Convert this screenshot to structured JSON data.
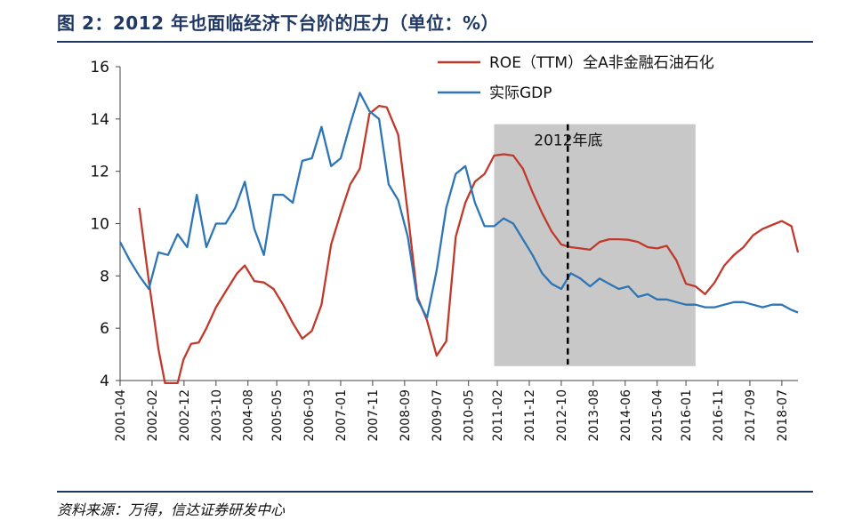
{
  "figure": {
    "title": "图 2：2012 年也面临经济下台阶的压力（单位：%）",
    "source": "资料来源：万得，信达证券研发中心"
  },
  "colors": {
    "roe": "#c0392b",
    "gdp": "#2e75b6",
    "shade": "#c8c8c8",
    "rule": "#1f3864"
  },
  "chart_data": {
    "type": "line",
    "title": "",
    "xlabel": "",
    "ylabel": "",
    "ylim": [
      4,
      16
    ],
    "yticks": [
      4,
      6,
      8,
      10,
      12,
      14,
      16
    ],
    "grid": false,
    "legend_position": "top-right",
    "xticks": [
      "2001-04",
      "2002-02",
      "2002-12",
      "2003-10",
      "2004-08",
      "2005-05",
      "2006-03",
      "2007-01",
      "2007-11",
      "2008-09",
      "2009-07",
      "2010-05",
      "2011-02",
      "2011-12",
      "2012-10",
      "2013-08",
      "2014-06",
      "2015-04",
      "2016-01",
      "2016-11",
      "2017-09",
      "2018-07"
    ],
    "x_range": [
      2001.25,
      2018.92
    ],
    "shaded_region": {
      "x_start": 2011.0,
      "x_end": 2016.25
    },
    "annotation": {
      "text": "2012年底",
      "x": 2012.92
    },
    "series": [
      {
        "name": "ROE（TTM）全A非金融石油石化",
        "color": "#c0392b",
        "points": [
          [
            2001.75,
            10.6
          ],
          [
            2002.0,
            7.8
          ],
          [
            2002.25,
            5.2
          ],
          [
            2002.42,
            3.9
          ],
          [
            2002.75,
            3.9
          ],
          [
            2002.9,
            4.8
          ],
          [
            2003.1,
            5.4
          ],
          [
            2003.3,
            5.45
          ],
          [
            2003.5,
            6.0
          ],
          [
            2003.75,
            6.8
          ],
          [
            2004.0,
            7.4
          ],
          [
            2004.3,
            8.1
          ],
          [
            2004.5,
            8.4
          ],
          [
            2004.75,
            7.8
          ],
          [
            2005.0,
            7.75
          ],
          [
            2005.25,
            7.5
          ],
          [
            2005.5,
            6.9
          ],
          [
            2005.75,
            6.2
          ],
          [
            2006.0,
            5.6
          ],
          [
            2006.25,
            5.9
          ],
          [
            2006.5,
            6.9
          ],
          [
            2006.75,
            9.2
          ],
          [
            2007.0,
            10.4
          ],
          [
            2007.25,
            11.5
          ],
          [
            2007.5,
            12.1
          ],
          [
            2007.75,
            14.2
          ],
          [
            2008.0,
            14.5
          ],
          [
            2008.2,
            14.45
          ],
          [
            2008.5,
            13.4
          ],
          [
            2008.75,
            10.4
          ],
          [
            2009.0,
            7.2
          ],
          [
            2009.25,
            6.3
          ],
          [
            2009.5,
            4.95
          ],
          [
            2009.75,
            5.5
          ],
          [
            2010.0,
            9.5
          ],
          [
            2010.25,
            10.8
          ],
          [
            2010.5,
            11.6
          ],
          [
            2010.75,
            11.9
          ],
          [
            2011.0,
            12.6
          ],
          [
            2011.25,
            12.65
          ],
          [
            2011.5,
            12.6
          ],
          [
            2011.75,
            12.1
          ],
          [
            2012.0,
            11.2
          ],
          [
            2012.25,
            10.4
          ],
          [
            2012.5,
            9.7
          ],
          [
            2012.75,
            9.2
          ],
          [
            2013.0,
            9.1
          ],
          [
            2013.25,
            9.05
          ],
          [
            2013.5,
            9.0
          ],
          [
            2013.75,
            9.3
          ],
          [
            2014.0,
            9.4
          ],
          [
            2014.25,
            9.4
          ],
          [
            2014.5,
            9.38
          ],
          [
            2014.75,
            9.3
          ],
          [
            2015.0,
            9.1
          ],
          [
            2015.25,
            9.05
          ],
          [
            2015.5,
            9.15
          ],
          [
            2015.75,
            8.6
          ],
          [
            2016.0,
            7.7
          ],
          [
            2016.25,
            7.6
          ],
          [
            2016.5,
            7.3
          ],
          [
            2016.75,
            7.75
          ],
          [
            2017.0,
            8.4
          ],
          [
            2017.25,
            8.8
          ],
          [
            2017.5,
            9.1
          ],
          [
            2017.75,
            9.55
          ],
          [
            2018.0,
            9.8
          ],
          [
            2018.25,
            9.95
          ],
          [
            2018.5,
            10.1
          ],
          [
            2018.75,
            9.9
          ],
          [
            2018.92,
            8.9
          ]
        ]
      },
      {
        "name": "实际GDP",
        "color": "#2e75b6",
        "points": [
          [
            2001.25,
            9.3
          ],
          [
            2001.5,
            8.6
          ],
          [
            2001.75,
            8.0
          ],
          [
            2002.0,
            7.5
          ],
          [
            2002.25,
            8.9
          ],
          [
            2002.5,
            8.8
          ],
          [
            2002.75,
            9.6
          ],
          [
            2003.0,
            9.1
          ],
          [
            2003.25,
            11.1
          ],
          [
            2003.5,
            9.1
          ],
          [
            2003.75,
            10.0
          ],
          [
            2004.0,
            10.0
          ],
          [
            2004.25,
            10.6
          ],
          [
            2004.5,
            11.6
          ],
          [
            2004.75,
            9.8
          ],
          [
            2005.0,
            8.8
          ],
          [
            2005.25,
            11.1
          ],
          [
            2005.5,
            11.1
          ],
          [
            2005.75,
            10.8
          ],
          [
            2006.0,
            12.4
          ],
          [
            2006.25,
            12.5
          ],
          [
            2006.5,
            13.7
          ],
          [
            2006.75,
            12.2
          ],
          [
            2007.0,
            12.5
          ],
          [
            2007.25,
            13.8
          ],
          [
            2007.5,
            15.0
          ],
          [
            2007.75,
            14.3
          ],
          [
            2008.0,
            14.0
          ],
          [
            2008.25,
            11.5
          ],
          [
            2008.5,
            10.9
          ],
          [
            2008.75,
            9.5
          ],
          [
            2009.0,
            7.1
          ],
          [
            2009.25,
            6.4
          ],
          [
            2009.5,
            8.2
          ],
          [
            2009.75,
            10.6
          ],
          [
            2010.0,
            11.9
          ],
          [
            2010.25,
            12.2
          ],
          [
            2010.5,
            10.8
          ],
          [
            2010.75,
            9.9
          ],
          [
            2011.0,
            9.9
          ],
          [
            2011.25,
            10.2
          ],
          [
            2011.5,
            10.0
          ],
          [
            2011.75,
            9.4
          ],
          [
            2012.0,
            8.8
          ],
          [
            2012.25,
            8.1
          ],
          [
            2012.5,
            7.7
          ],
          [
            2012.75,
            7.5
          ],
          [
            2013.0,
            8.1
          ],
          [
            2013.25,
            7.9
          ],
          [
            2013.5,
            7.6
          ],
          [
            2013.75,
            7.9
          ],
          [
            2014.0,
            7.7
          ],
          [
            2014.25,
            7.5
          ],
          [
            2014.5,
            7.6
          ],
          [
            2014.75,
            7.2
          ],
          [
            2015.0,
            7.3
          ],
          [
            2015.25,
            7.1
          ],
          [
            2015.5,
            7.1
          ],
          [
            2015.75,
            7.0
          ],
          [
            2016.0,
            6.9
          ],
          [
            2016.25,
            6.9
          ],
          [
            2016.5,
            6.8
          ],
          [
            2016.75,
            6.8
          ],
          [
            2017.0,
            6.9
          ],
          [
            2017.25,
            7.0
          ],
          [
            2017.5,
            7.0
          ],
          [
            2017.75,
            6.9
          ],
          [
            2018.0,
            6.8
          ],
          [
            2018.25,
            6.9
          ],
          [
            2018.5,
            6.9
          ],
          [
            2018.75,
            6.7
          ],
          [
            2018.92,
            6.6
          ]
        ]
      }
    ]
  }
}
